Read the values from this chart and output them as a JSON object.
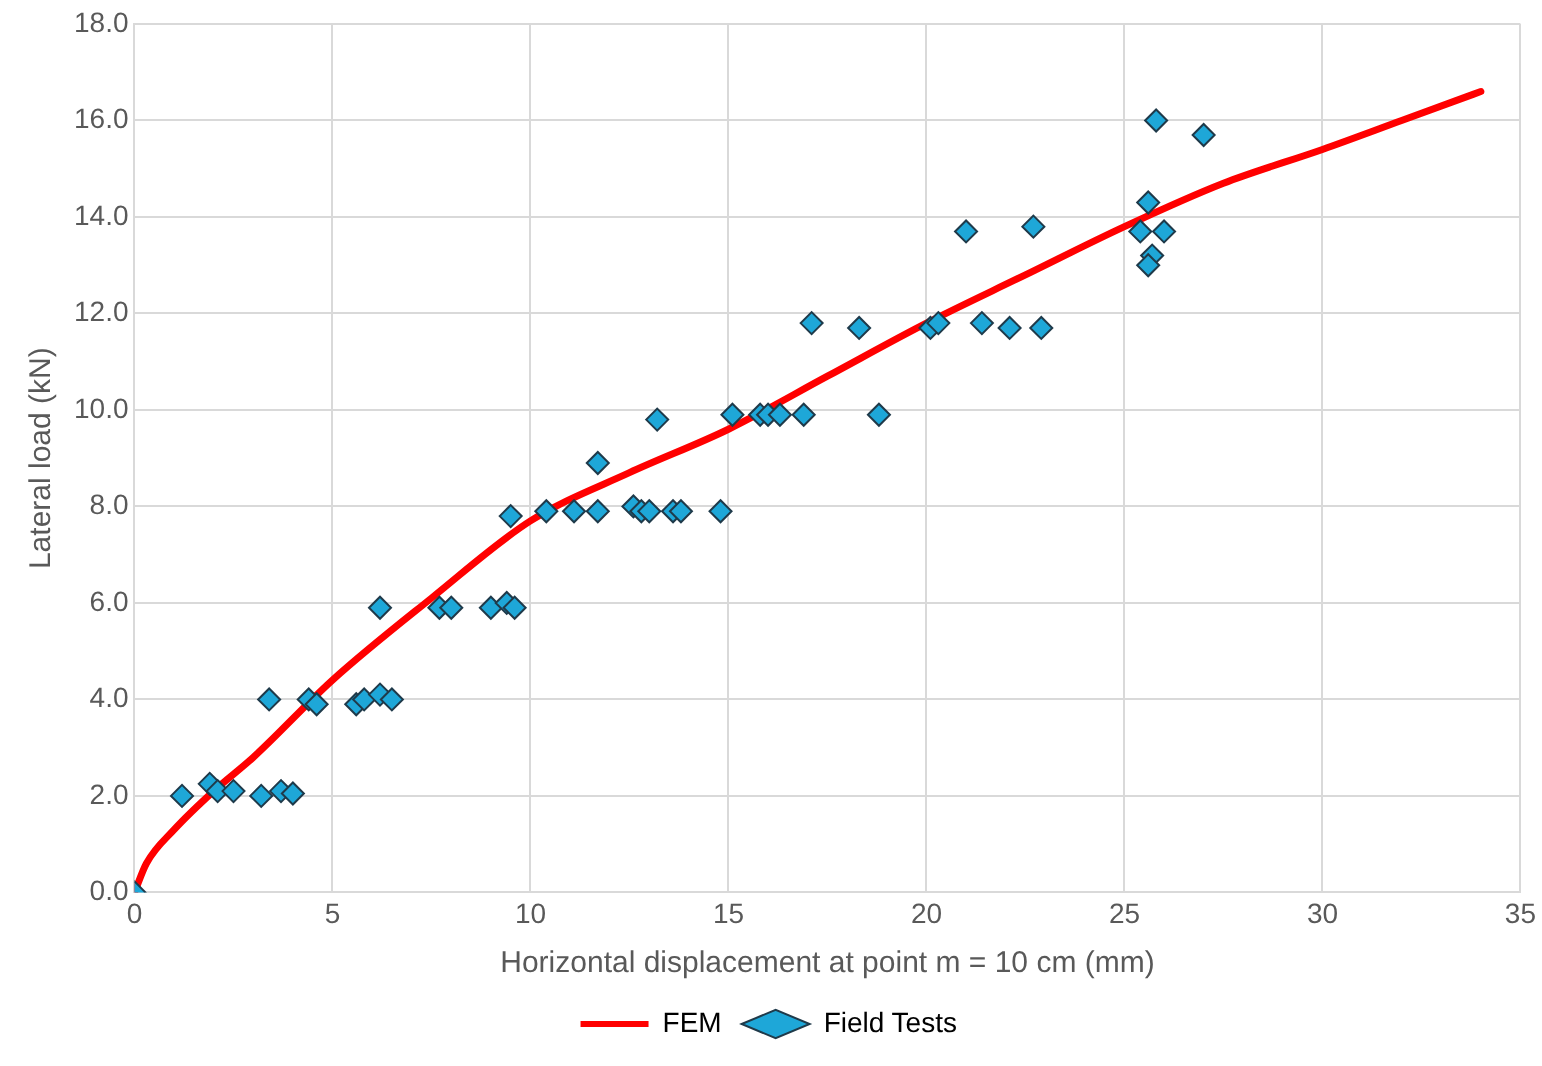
{
  "chart_data": {
    "type": "scatter",
    "xlabel": "Horizontal displacement at point m = 10 cm (mm)",
    "ylabel": "Lateral load (kN)",
    "xlim": [
      0,
      35
    ],
    "xticks": [
      0,
      5,
      10,
      15,
      20,
      25,
      30,
      35
    ],
    "ylim": [
      0,
      18
    ],
    "yticks": [
      {
        "value": 0,
        "label": "0.0"
      },
      {
        "value": 2,
        "label": "2.0"
      },
      {
        "value": 4,
        "label": "4.0"
      },
      {
        "value": 6,
        "label": "6.0"
      },
      {
        "value": 8,
        "label": "8.0"
      },
      {
        "value": 10,
        "label": "10.0"
      },
      {
        "value": 12,
        "label": "12.0"
      },
      {
        "value": 14,
        "label": "14.0"
      },
      {
        "value": 16,
        "label": "16.0"
      },
      {
        "value": 18,
        "label": "18.0"
      }
    ],
    "grid": true,
    "legend": "bottom",
    "series": [
      {
        "name": "FEM",
        "type": "line",
        "color": "#ff0000",
        "marker": "none",
        "line_style": "solid",
        "x": [
          0,
          0.3,
          1,
          2,
          3,
          5,
          7.5,
          10,
          12.5,
          15,
          17.5,
          20,
          22.5,
          25,
          27.5,
          30,
          32,
          34
        ],
        "values": [
          0,
          0.6,
          1.3,
          2.1,
          2.8,
          4.4,
          6.1,
          7.7,
          8.7,
          9.6,
          10.7,
          11.8,
          12.8,
          13.8,
          14.7,
          15.4,
          16.0,
          16.6
        ]
      },
      {
        "name": "Field Tests",
        "type": "scatter",
        "color": "#1ea7d8",
        "marker": "diamond",
        "x": [
          0,
          1.2,
          1.9,
          2.1,
          2.5,
          3.2,
          3.7,
          4.0,
          3.4,
          4.4,
          4.6,
          5.6,
          5.8,
          6.2,
          6.5,
          6.2,
          7.7,
          8.0,
          9.0,
          9.4,
          9.6,
          9.5,
          10.4,
          11.1,
          11.7,
          11.7,
          12.6,
          12.8,
          13.0,
          13.6,
          13.8,
          14.8,
          13.2,
          15.1,
          15.8,
          16.0,
          16.3,
          16.9,
          17.1,
          18.3,
          18.8,
          20.1,
          20.3,
          21.0,
          21.4,
          22.1,
          22.7,
          22.9,
          25.4,
          25.6,
          25.7,
          25.6,
          25.8,
          26.0,
          27.0
        ],
        "values": [
          0,
          2.0,
          2.25,
          2.1,
          2.1,
          2.0,
          2.1,
          2.05,
          4.0,
          4.0,
          3.9,
          3.9,
          4.0,
          4.1,
          4.0,
          5.9,
          5.9,
          5.9,
          5.9,
          6.0,
          5.9,
          7.8,
          7.9,
          7.9,
          7.9,
          8.9,
          8.0,
          7.9,
          7.9,
          7.9,
          7.9,
          7.9,
          9.8,
          9.9,
          9.9,
          9.9,
          9.9,
          9.9,
          11.8,
          11.7,
          9.9,
          11.7,
          11.8,
          13.7,
          11.8,
          11.7,
          13.8,
          11.7,
          13.7,
          14.3,
          13.2,
          13.0,
          16.0,
          13.7,
          15.7
        ]
      }
    ]
  }
}
